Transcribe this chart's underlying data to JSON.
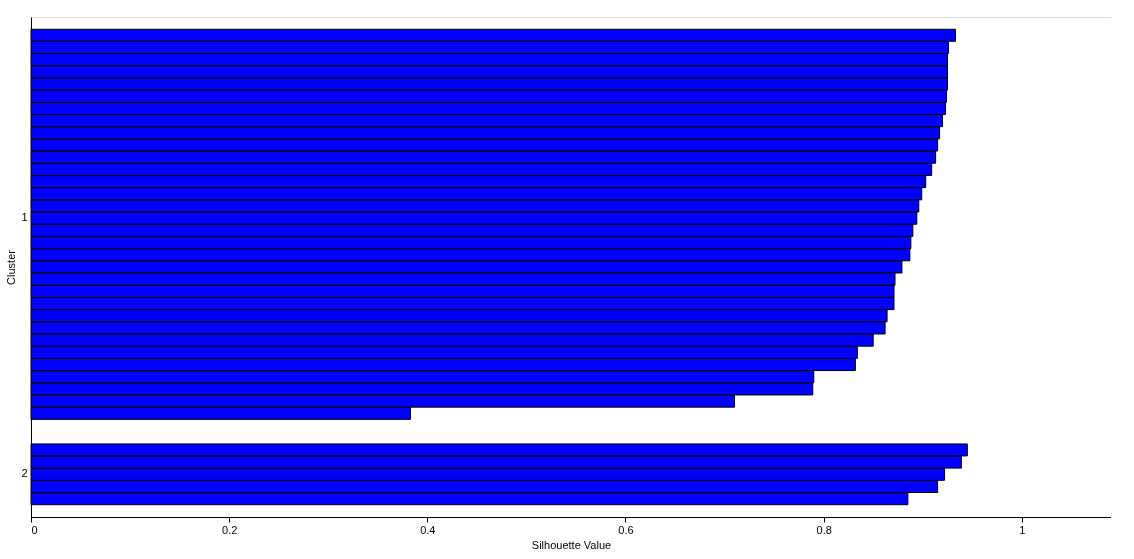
{
  "chart_data": {
    "type": "bar",
    "orientation": "horizontal",
    "xlabel": "Silhouette Value",
    "ylabel": "Cluster",
    "categories": [
      null,
      null,
      null,
      null,
      null,
      null,
      null,
      null,
      null,
      null,
      null,
      null,
      null,
      null,
      null,
      null,
      "1",
      null,
      null,
      null,
      null,
      null,
      null,
      null,
      null,
      null,
      null,
      null,
      null,
      null,
      null,
      null,
      null,
      null,
      null,
      null,
      null,
      "2",
      null,
      null,
      null
    ],
    "series": [
      {
        "color": "#0000ff",
        "values": [
          null,
          0.933,
          0.926,
          0.925,
          0.925,
          0.925,
          0.924,
          0.923,
          0.92,
          0.917,
          0.915,
          0.913,
          0.909,
          0.903,
          0.899,
          0.896,
          0.894,
          0.89,
          0.888,
          0.887,
          0.879,
          0.872,
          0.871,
          0.871,
          0.864,
          0.862,
          0.85,
          0.834,
          0.832,
          0.79,
          0.789,
          0.71,
          0.383,
          null,
          null,
          0.945,
          0.939,
          0.922,
          0.915,
          0.885,
          null
        ]
      }
    ],
    "xlim": [
      0,
      1.09
    ],
    "xticks": [
      0,
      0.2,
      0.4,
      0.6,
      0.8,
      1
    ],
    "grid": false,
    "legend": false
  }
}
